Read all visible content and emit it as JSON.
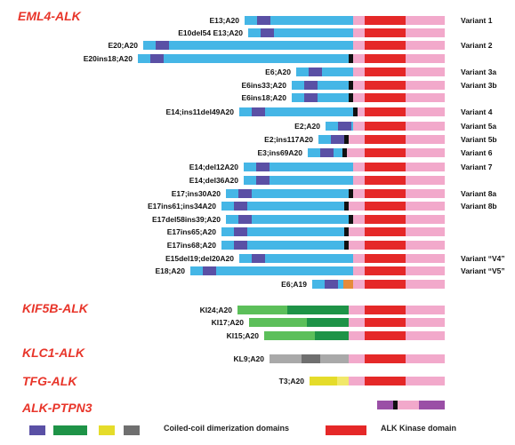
{
  "colors": {
    "eml4": "#45b6e6",
    "eml4_block": "#5a50a5",
    "junction": "#111111",
    "alk_pink": "#f2a9cb",
    "alk_kinase": "#e52828",
    "kif5b": "#5cbf5a",
    "kif5b_dark": "#1e9347",
    "klc1_gray": "#a9a9a9",
    "klc1_dark": "#6f6f6f",
    "tfg_yellow": "#e5dc2a",
    "ptpn3_purple": "#9a4fa6",
    "orange": "#e58b3a"
  },
  "groups": [
    {
      "key": "eml4-alk",
      "title": "EML4-ALK"
    },
    {
      "key": "kif5b-alk",
      "title": "KIF5B-ALK"
    },
    {
      "key": "klc1-alk",
      "title": "KLC1-ALK"
    },
    {
      "key": "tfg-alk",
      "title": "TFG-ALK"
    },
    {
      "key": "alk-ptpn3",
      "title": "ALK-PTPN3"
    }
  ],
  "eml4_rows": [
    {
      "label": "E13;A20",
      "variant": "Variant 1",
      "junction": false
    },
    {
      "label": "E10del54 E13;A20",
      "variant": "",
      "junction": false
    },
    {
      "label": "E20;A20",
      "variant": "Variant 2",
      "junction": false
    },
    {
      "label": "E20ins18;A20",
      "variant": "",
      "junction": true
    },
    {
      "label": "E6;A20",
      "variant": "Variant 3a",
      "junction": false
    },
    {
      "label": "E6ins33;A20",
      "variant": "Variant 3b",
      "junction": true
    },
    {
      "label": "E6ins18;A20",
      "variant": "",
      "junction": true
    },
    {
      "label": "E14;ins11del49A20",
      "variant": "Variant 4",
      "junction": true
    },
    {
      "label": "E2;A20",
      "variant": "Variant 5a",
      "junction": false
    },
    {
      "label": "E2;ins117A20",
      "variant": "Variant 5b",
      "junction": true
    },
    {
      "label": "E3;ins69A20",
      "variant": "Variant 6",
      "junction": true
    },
    {
      "label": "E14;del12A20",
      "variant": "Variant 7",
      "junction": false
    },
    {
      "label": "E14;del36A20",
      "variant": "",
      "junction": false
    },
    {
      "label": "E17;ins30A20",
      "variant": "Variant 8a",
      "junction": true
    },
    {
      "label": "E17ins61;ins34A20",
      "variant": "Variant 8b",
      "junction": true
    },
    {
      "label": "E17del58ins39;A20",
      "variant": "",
      "junction": true
    },
    {
      "label": "E17ins65;A20",
      "variant": "",
      "junction": true
    },
    {
      "label": "E17ins68;A20",
      "variant": "",
      "junction": true
    },
    {
      "label": "E15del19;del20A20",
      "variant": "Variant “V4”",
      "junction": false
    },
    {
      "label": "E18;A20",
      "variant": "Variant “V5”",
      "junction": false
    },
    {
      "label": "E6;A19",
      "variant": "",
      "junction": false
    }
  ],
  "kif5b_rows": [
    {
      "label": "KI24;A20"
    },
    {
      "label": "KI17;A20"
    },
    {
      "label": "KI15;A20"
    }
  ],
  "klc1_rows": [
    {
      "label": "KL9;A20"
    }
  ],
  "tfg_rows": [
    {
      "label": "T3;A20"
    }
  ],
  "legend": {
    "coiled_coil_label": "Coiled-coil dimerization domains",
    "kinase_label": "ALK Kinase domain"
  }
}
